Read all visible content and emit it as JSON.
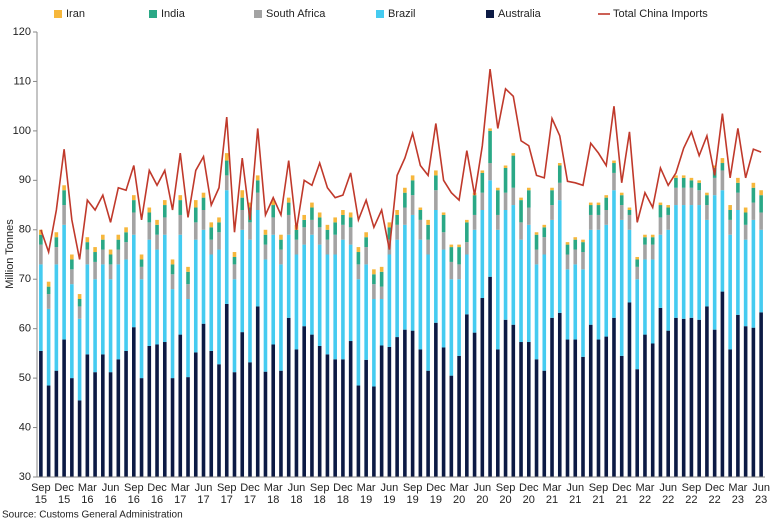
{
  "chart_data": {
    "type": "bar",
    "y_label": "Million Tonnes",
    "source": "Source: Customs General Administration",
    "ylim": [
      30,
      120
    ],
    "yticks": [
      30,
      40,
      50,
      60,
      70,
      80,
      90,
      100,
      110,
      120
    ],
    "grid": false,
    "legend": "top",
    "categories": [
      "Sep 15",
      null,
      null,
      "Dec 15",
      null,
      null,
      "Mar 16",
      null,
      null,
      "Jun 16",
      null,
      null,
      "Sep 16",
      null,
      null,
      "Dec 16",
      null,
      null,
      "Mar 17",
      null,
      null,
      "Jun 17",
      null,
      null,
      "Sep 17",
      null,
      null,
      "Dec 17",
      null,
      null,
      "Mar 18",
      null,
      null,
      "Jun 18",
      null,
      null,
      "Sep 18",
      null,
      null,
      "Dec 18",
      null,
      null,
      "Mar 19",
      null,
      null,
      "Jun 19",
      null,
      null,
      "Sep 19",
      null,
      null,
      "Dec 19",
      null,
      null,
      "Mar 20",
      null,
      null,
      "Jun 20",
      null,
      null,
      "Sep 20",
      null,
      null,
      "Dec 20",
      null,
      null,
      "Mar 21",
      null,
      null,
      "Jun 21",
      null,
      null,
      "Sep 21",
      null,
      null,
      "Dec 21",
      null,
      null,
      "Mar 22",
      null,
      null,
      "Jun 22",
      null,
      null,
      "Sep 22",
      null,
      null,
      "Dec 22",
      null,
      null,
      "Mar 23",
      null,
      null,
      "Jun 23"
    ],
    "series": [
      {
        "name": "Iran",
        "color": "#f6b73c",
        "values": [
          1,
          1,
          1,
          1,
          1,
          1,
          1,
          1,
          1,
          1,
          1,
          1,
          1,
          1,
          1,
          1,
          1,
          1,
          1,
          1,
          1.5,
          1,
          1,
          1,
          1.5,
          1,
          1.5,
          1,
          1,
          1,
          1,
          1,
          1,
          1,
          1,
          1,
          1,
          1,
          1,
          1,
          1,
          1,
          1,
          1,
          1,
          1,
          1,
          1,
          1,
          0.5,
          1,
          1,
          0.5,
          0.5,
          0.5,
          0.5,
          0.5,
          0.5,
          0.5,
          0.5,
          0.5,
          0.5,
          0.5,
          0.5,
          0.5,
          0.5,
          0.5,
          0.5,
          0.5,
          0.5,
          0.5,
          0.5,
          0.5,
          0.5,
          0.5,
          0.5,
          0.5,
          0.5,
          0.5,
          0.5,
          0.5,
          0.5,
          0.5,
          0.5,
          0.5,
          0.5,
          0.5,
          0.5,
          1,
          1,
          1,
          1,
          1,
          1
        ]
      },
      {
        "name": "India",
        "color": "#2aa886",
        "values": [
          2,
          1.5,
          2,
          3,
          2,
          1.5,
          1.5,
          2,
          2,
          2,
          2,
          2,
          2.5,
          1.5,
          2,
          2,
          2.5,
          2,
          3,
          2.5,
          3,
          2.5,
          2.5,
          2,
          3,
          1.5,
          2.5,
          3,
          2.5,
          2,
          2.5,
          2,
          2.5,
          2,
          1.5,
          2.5,
          2,
          2,
          2.5,
          2,
          2,
          2.5,
          2,
          2,
          3,
          2.5,
          2,
          3,
          3,
          2,
          3,
          3,
          3.5,
          3,
          3.5,
          4,
          4,
          4,
          6.5,
          5,
          5,
          6.5,
          4.5,
          3.5,
          3,
          2,
          3,
          3.5,
          2,
          2,
          2,
          2,
          2,
          2.5,
          2,
          2,
          1,
          1.5,
          1.5,
          1.5,
          2.5,
          1.5,
          2,
          2,
          1.5,
          1.5,
          2,
          2,
          1.5,
          2,
          2,
          2.5,
          3,
          3.5
        ]
      },
      {
        "name": "South Africa",
        "color": "#a3a3a3",
        "values": [
          4,
          3,
          3.5,
          4,
          3,
          2.5,
          3,
          3.5,
          3,
          3,
          3,
          3.5,
          4.5,
          2.5,
          3.5,
          3,
          3.5,
          3,
          4,
          3,
          3.5,
          4,
          3,
          3.5,
          3,
          3,
          4,
          3.5,
          3.5,
          3,
          3.5,
          3,
          4,
          3,
          3.5,
          3,
          3.5,
          3,
          4,
          3,
          3.5,
          3,
          3.5,
          3,
          2.5,
          3,
          3,
          3.5,
          4,
          4,
          3,
          4,
          3.5,
          3.5,
          3,
          2.5,
          3,
          3.5,
          3.5,
          3,
          3.5,
          3.5,
          3.5,
          3.5,
          3,
          3.5,
          3,
          3.5,
          3,
          3,
          3.5,
          3,
          3,
          3,
          3.5,
          3,
          3,
          2.5,
          3,
          3,
          3.5,
          3,
          3.5,
          3.5,
          3.5,
          3,
          3,
          3.5,
          4,
          3,
          3.5,
          3,
          3.5,
          3.5
        ]
      },
      {
        "name": "Brazil",
        "color": "#45cbf0",
        "values": [
          17.5,
          15.5,
          21.5,
          23.2,
          19,
          16.5,
          18.2,
          18.8,
          18.2,
          18.8,
          19.2,
          18.5,
          18.7,
          20,
          21.5,
          19.2,
          21.7,
          18,
          20.2,
          15.8,
          22.8,
          19,
          19.5,
          23.2,
          23,
          18.8,
          20.7,
          24.8,
          19.5,
          22.7,
          22.2,
          21.5,
          16.8,
          19.2,
          16.5,
          20.2,
          20.5,
          20.2,
          21.2,
          24.2,
          19.5,
          21.5,
          19.3,
          17.7,
          9.4,
          18.7,
          19.7,
          21.2,
          23.4,
          22.2,
          23.5,
          22.8,
          19.8,
          19.5,
          15.5,
          12.1,
          20.8,
          17.8,
          19.5,
          24.2,
          22.2,
          24.2,
          20.7,
          23.7,
          19.2,
          23.5,
          19.8,
          22.8,
          14.2,
          15.2,
          17.7,
          19.2,
          22.2,
          22.6,
          25.8,
          27.5,
          14.7,
          18.2,
          15.2,
          17,
          14.8,
          20.4,
          22.8,
          23,
          22.8,
          23.2,
          17.5,
          27.2,
          20.5,
          23.2,
          21.2,
          17.5,
          21.8,
          16.7
        ]
      },
      {
        "name": "Australia",
        "color": "#0c1a44",
        "values": [
          55.5,
          48.5,
          51.5,
          57.8,
          50,
          45.5,
          54.8,
          51.2,
          54.8,
          51.2,
          53.8,
          55.5,
          60.3,
          50,
          56.5,
          56.8,
          57.3,
          50,
          58.8,
          50.2,
          55.2,
          61,
          55.5,
          52.8,
          65,
          51.2,
          59.3,
          53.2,
          64.5,
          51.3,
          56.8,
          51.5,
          62.2,
          55.8,
          60.5,
          58.8,
          56.5,
          54.8,
          53.8,
          53.8,
          57.5,
          48.5,
          53.7,
          48.3,
          56.6,
          56.3,
          58.3,
          59.8,
          59.6,
          55.8,
          51.5,
          61.2,
          56.2,
          50.5,
          54.5,
          62.9,
          59.2,
          66.2,
          70.5,
          55.8,
          61.8,
          60.8,
          57.3,
          57.3,
          53.8,
          51.5,
          62.2,
          63.2,
          57.8,
          57.8,
          54.3,
          60.8,
          57.8,
          58.4,
          62.2,
          54.5,
          65.3,
          51.8,
          58.8,
          57,
          64.2,
          59.6,
          62.2,
          62,
          62.2,
          61.8,
          64.5,
          59.8,
          67.5,
          55.8,
          62.8,
          60.5,
          60.2,
          63.3
        ]
      },
      {
        "name": "Total China Imports",
        "color": "#c0392b",
        "type": "line",
        "values": [
          80,
          75.5,
          84,
          96.3,
          82,
          74,
          86,
          84,
          87,
          81.5,
          88.5,
          88,
          93,
          82,
          92,
          89,
          92,
          84,
          95.5,
          82.5,
          92,
          94.8,
          85,
          88.5,
          102.8,
          79.5,
          94.5,
          82,
          100.5,
          83,
          86.5,
          83,
          94,
          80,
          90,
          89,
          93.5,
          88.5,
          86.5,
          87,
          91.5,
          82,
          86,
          80.5,
          84,
          76,
          91,
          94.5,
          99.5,
          93,
          91,
          101.5,
          90,
          87.5,
          86,
          96,
          87,
          97,
          112.5,
          100.5,
          108.5,
          107,
          98,
          97,
          91,
          90.5,
          102.5,
          99,
          89.8,
          89.5,
          89,
          97.5,
          95.5,
          93,
          105,
          89.5,
          99.8,
          81.5,
          87.5,
          84.5,
          92.5,
          89,
          91.5,
          96.5,
          99.8,
          95,
          99,
          91,
          103.5,
          90.5,
          100.5,
          90.5,
          96.3,
          95.7
        ]
      }
    ]
  }
}
